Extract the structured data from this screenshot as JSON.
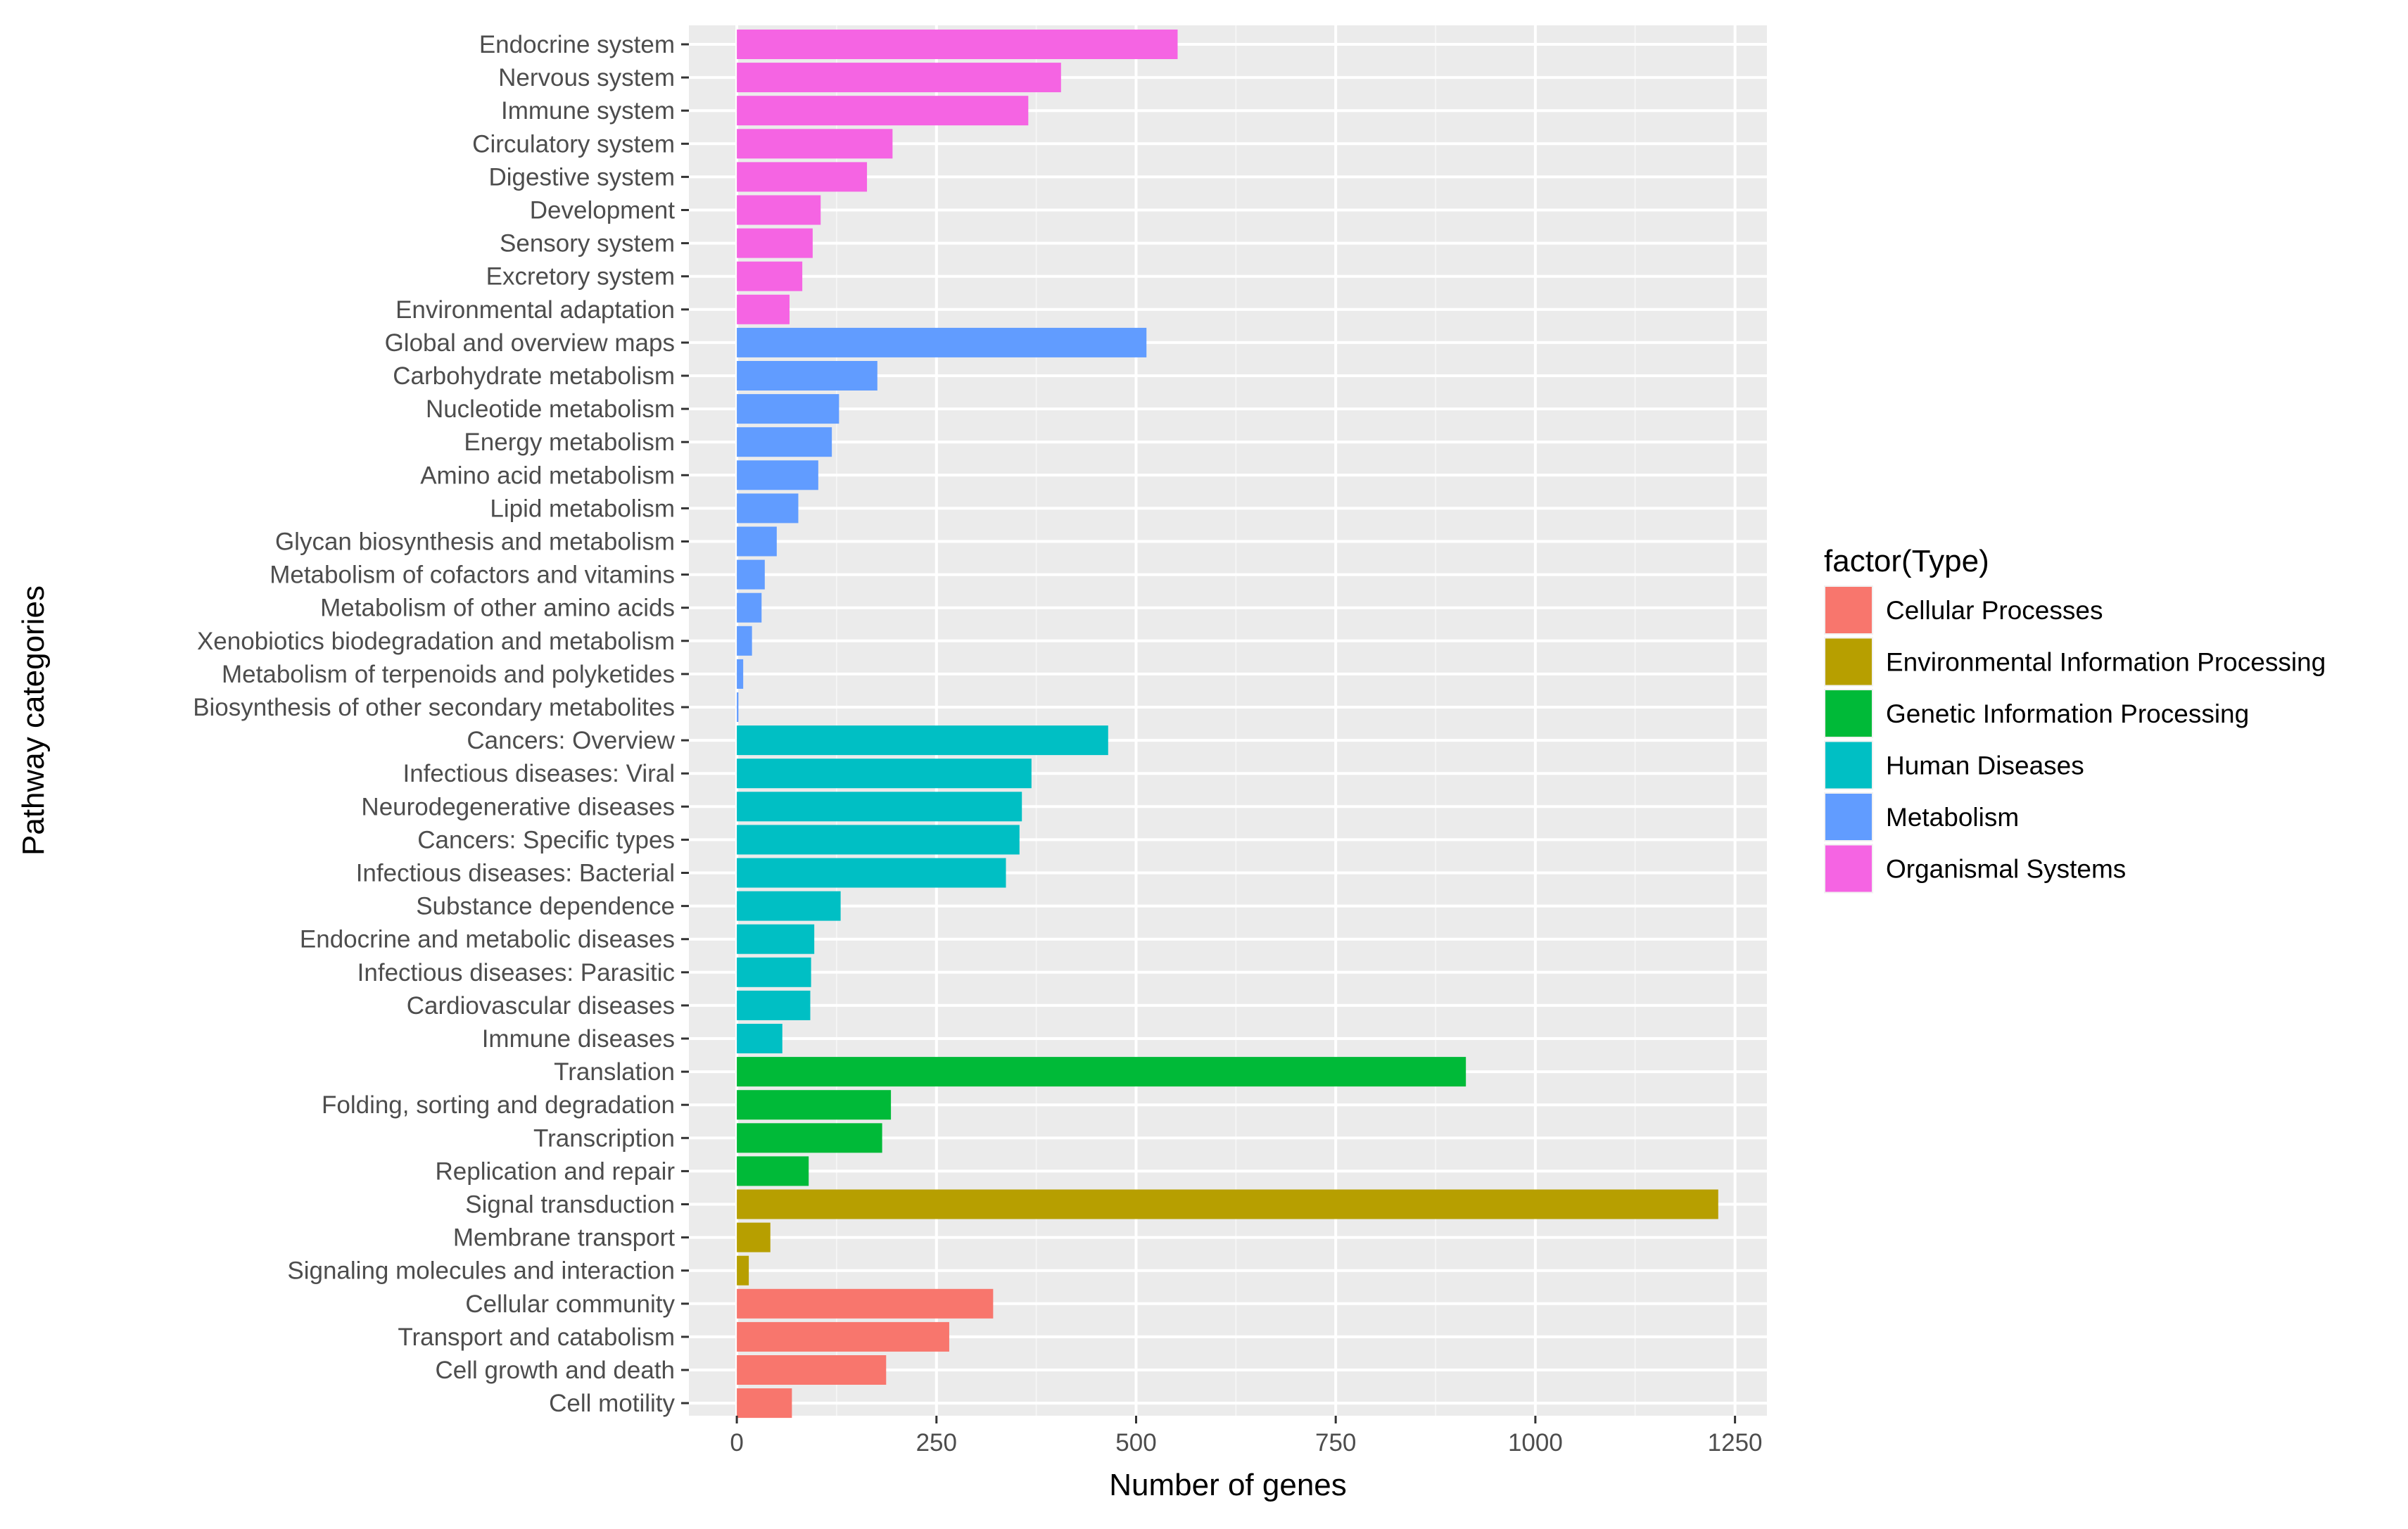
{
  "chart_data": {
    "type": "bar",
    "orientation": "horizontal",
    "xlabel": "Number of genes",
    "ylabel": "Pathway categories",
    "xlim": [
      -60,
      1290
    ],
    "xticks": [
      0,
      250,
      500,
      750,
      1000,
      1250
    ],
    "xtick_labels": [
      "0",
      "250",
      "500",
      "750",
      "1000",
      "1250"
    ],
    "grid": true,
    "legend": {
      "title": "factor(Type)",
      "placement": "right",
      "entries": [
        {
          "label": "Cellular Processes",
          "color": "#F8766D"
        },
        {
          "label": "Environmental Information Processing",
          "color": "#B79F00"
        },
        {
          "label": "Genetic Information Processing",
          "color": "#00BA38"
        },
        {
          "label": "Human Diseases",
          "color": "#00BFC4"
        },
        {
          "label": "Metabolism",
          "color": "#619CFF"
        },
        {
          "label": "Organismal Systems",
          "color": "#F564E3"
        }
      ]
    },
    "bars": [
      {
        "category": "Endocrine system",
        "value": 552,
        "type": "Organismal Systems"
      },
      {
        "category": "Nervous system",
        "value": 406,
        "type": "Organismal Systems"
      },
      {
        "category": "Immune system",
        "value": 365,
        "type": "Organismal Systems"
      },
      {
        "category": "Circulatory system",
        "value": 195,
        "type": "Organismal Systems"
      },
      {
        "category": "Digestive system",
        "value": 163,
        "type": "Organismal Systems"
      },
      {
        "category": "Development",
        "value": 105,
        "type": "Organismal Systems"
      },
      {
        "category": "Sensory system",
        "value": 95,
        "type": "Organismal Systems"
      },
      {
        "category": "Excretory system",
        "value": 82,
        "type": "Organismal Systems"
      },
      {
        "category": "Environmental adaptation",
        "value": 66,
        "type": "Organismal Systems"
      },
      {
        "category": "Global and overview maps",
        "value": 513,
        "type": "Metabolism"
      },
      {
        "category": "Carbohydrate metabolism",
        "value": 176,
        "type": "Metabolism"
      },
      {
        "category": "Nucleotide metabolism",
        "value": 128,
        "type": "Metabolism"
      },
      {
        "category": "Energy metabolism",
        "value": 119,
        "type": "Metabolism"
      },
      {
        "category": "Amino acid metabolism",
        "value": 102,
        "type": "Metabolism"
      },
      {
        "category": "Lipid metabolism",
        "value": 77,
        "type": "Metabolism"
      },
      {
        "category": "Glycan biosynthesis and metabolism",
        "value": 50,
        "type": "Metabolism"
      },
      {
        "category": "Metabolism of cofactors and vitamins",
        "value": 35,
        "type": "Metabolism"
      },
      {
        "category": "Metabolism of other amino acids",
        "value": 31,
        "type": "Metabolism"
      },
      {
        "category": "Xenobiotics biodegradation and metabolism",
        "value": 19,
        "type": "Metabolism"
      },
      {
        "category": "Metabolism of terpenoids and polyketides",
        "value": 8,
        "type": "Metabolism"
      },
      {
        "category": "Biosynthesis of other secondary metabolites",
        "value": 2,
        "type": "Metabolism"
      },
      {
        "category": "Cancers: Overview",
        "value": 465,
        "type": "Human Diseases"
      },
      {
        "category": "Infectious diseases: Viral",
        "value": 369,
        "type": "Human Diseases"
      },
      {
        "category": "Neurodegenerative diseases",
        "value": 357,
        "type": "Human Diseases"
      },
      {
        "category": "Cancers: Specific types",
        "value": 354,
        "type": "Human Diseases"
      },
      {
        "category": "Infectious diseases: Bacterial",
        "value": 337,
        "type": "Human Diseases"
      },
      {
        "category": "Substance dependence",
        "value": 130,
        "type": "Human Diseases"
      },
      {
        "category": "Endocrine and metabolic diseases",
        "value": 97,
        "type": "Human Diseases"
      },
      {
        "category": "Infectious diseases: Parasitic",
        "value": 93,
        "type": "Human Diseases"
      },
      {
        "category": "Cardiovascular diseases",
        "value": 92,
        "type": "Human Diseases"
      },
      {
        "category": "Immune diseases",
        "value": 57,
        "type": "Human Diseases"
      },
      {
        "category": "Translation",
        "value": 913,
        "type": "Genetic Information Processing"
      },
      {
        "category": "Folding, sorting and degradation",
        "value": 193,
        "type": "Genetic Information Processing"
      },
      {
        "category": "Transcription",
        "value": 182,
        "type": "Genetic Information Processing"
      },
      {
        "category": "Replication and repair",
        "value": 90,
        "type": "Genetic Information Processing"
      },
      {
        "category": "Signal transduction",
        "value": 1229,
        "type": "Environmental Information Processing"
      },
      {
        "category": "Membrane transport",
        "value": 42,
        "type": "Environmental Information Processing"
      },
      {
        "category": "Signaling molecules and interaction",
        "value": 15,
        "type": "Environmental Information Processing"
      },
      {
        "category": "Cellular community",
        "value": 321,
        "type": "Cellular Processes"
      },
      {
        "category": "Transport and catabolism",
        "value": 266,
        "type": "Cellular Processes"
      },
      {
        "category": "Cell growth and death",
        "value": 187,
        "type": "Cellular Processes"
      },
      {
        "category": "Cell motility",
        "value": 69,
        "type": "Cellular Processes"
      }
    ]
  }
}
